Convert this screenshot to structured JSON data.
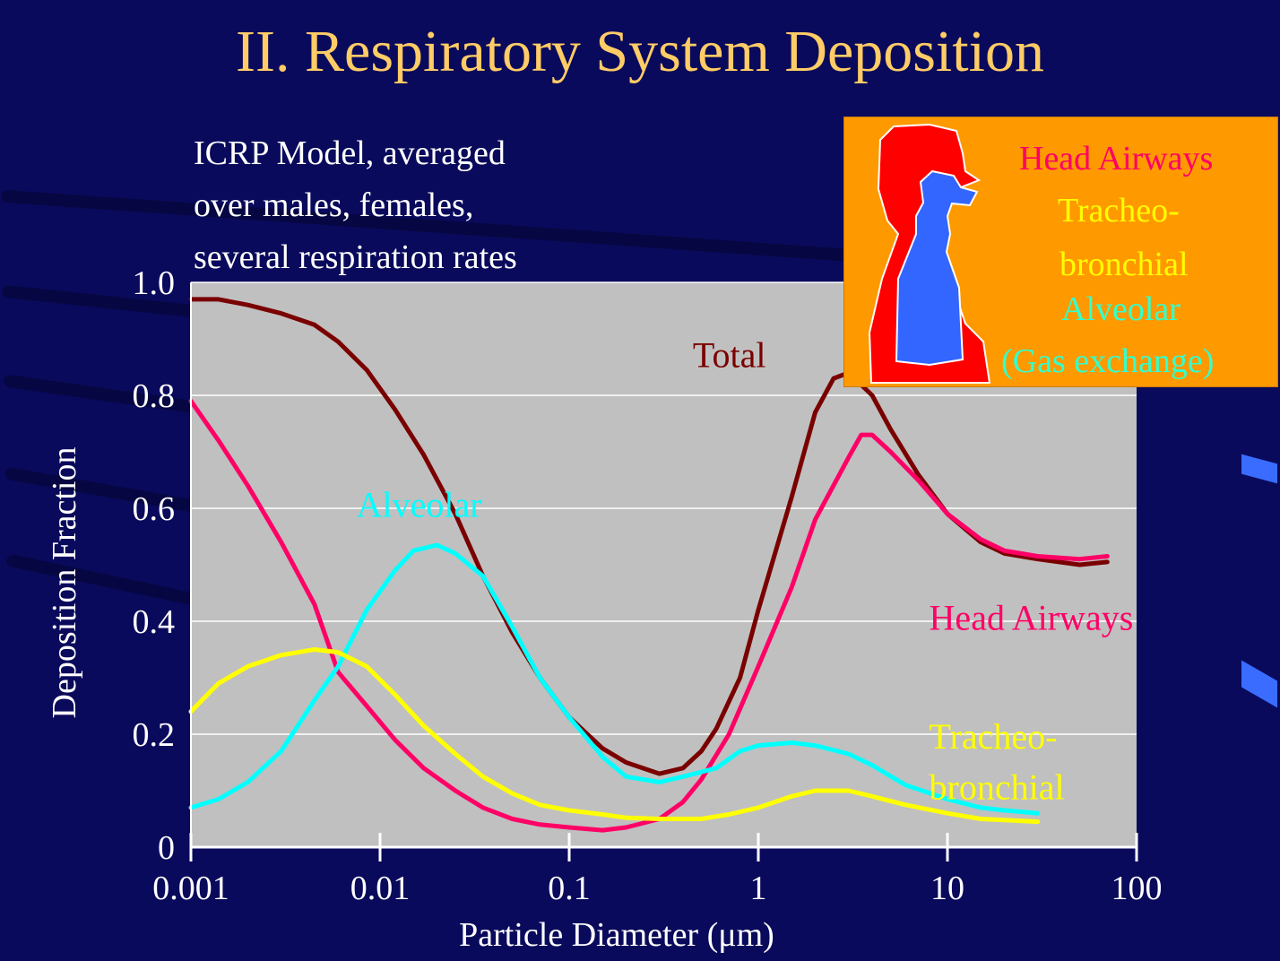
{
  "slide": {
    "title": "II.  Respiratory System Deposition",
    "subtitle_lines": [
      "ICRP Model, averaged",
      "over males, females,",
      "several respiration rates"
    ]
  },
  "legend": {
    "head": "Head Airways",
    "tracheo_1": "Tracheo-",
    "tracheo_2": "bronchial",
    "alveolar": "Alveolar",
    "gas": "(Gas exchange)",
    "colors": {
      "head": "#ff0066",
      "tracheo": "#ffff00",
      "alveolar": "#33ffcc",
      "box": "#ff9900",
      "body_red": "#ff0000",
      "body_blue": "#3366ff"
    }
  },
  "chart_data": {
    "type": "line",
    "x_scale": "log",
    "xlabel": "Particle Diameter (μm)",
    "ylabel": "Deposition Fraction",
    "xlim": [
      0.001,
      100
    ],
    "ylim": [
      0,
      1.0
    ],
    "x_ticks": [
      "0.001",
      "0.01",
      "0.1",
      "1",
      "10",
      "100"
    ],
    "y_ticks": [
      "0",
      "0.2",
      "0.4",
      "0.6",
      "0.8",
      "1.0"
    ],
    "plot_background": "#c0c0c0",
    "grid": "horizontal",
    "series": [
      {
        "name": "Total",
        "color": "#7a0000",
        "points": [
          [
            0.001,
            0.97
          ],
          [
            0.0014,
            0.97
          ],
          [
            0.002,
            0.96
          ],
          [
            0.003,
            0.945
          ],
          [
            0.0045,
            0.925
          ],
          [
            0.006,
            0.895
          ],
          [
            0.0085,
            0.845
          ],
          [
            0.012,
            0.775
          ],
          [
            0.017,
            0.695
          ],
          [
            0.025,
            0.59
          ],
          [
            0.035,
            0.48
          ],
          [
            0.05,
            0.38
          ],
          [
            0.07,
            0.3
          ],
          [
            0.1,
            0.23
          ],
          [
            0.15,
            0.175
          ],
          [
            0.2,
            0.15
          ],
          [
            0.3,
            0.13
          ],
          [
            0.4,
            0.14
          ],
          [
            0.5,
            0.17
          ],
          [
            0.6,
            0.21
          ],
          [
            0.8,
            0.3
          ],
          [
            1.0,
            0.42
          ],
          [
            1.5,
            0.62
          ],
          [
            2.0,
            0.77
          ],
          [
            2.5,
            0.83
          ],
          [
            3.0,
            0.84
          ],
          [
            4.0,
            0.8
          ],
          [
            5.0,
            0.74
          ],
          [
            7.0,
            0.66
          ],
          [
            10,
            0.59
          ],
          [
            15,
            0.54
          ],
          [
            20,
            0.52
          ],
          [
            30,
            0.51
          ],
          [
            50,
            0.5
          ],
          [
            70,
            0.505
          ]
        ]
      },
      {
        "name": "Head Airways",
        "color": "#ff0066",
        "points": [
          [
            0.001,
            0.79
          ],
          [
            0.0014,
            0.72
          ],
          [
            0.002,
            0.64
          ],
          [
            0.003,
            0.54
          ],
          [
            0.0045,
            0.43
          ],
          [
            0.006,
            0.31
          ],
          [
            0.0085,
            0.25
          ],
          [
            0.012,
            0.19
          ],
          [
            0.017,
            0.14
          ],
          [
            0.025,
            0.1
          ],
          [
            0.035,
            0.07
          ],
          [
            0.05,
            0.05
          ],
          [
            0.07,
            0.04
          ],
          [
            0.1,
            0.035
          ],
          [
            0.15,
            0.03
          ],
          [
            0.2,
            0.035
          ],
          [
            0.3,
            0.05
          ],
          [
            0.4,
            0.08
          ],
          [
            0.5,
            0.12
          ],
          [
            0.7,
            0.2
          ],
          [
            1.0,
            0.32
          ],
          [
            1.5,
            0.46
          ],
          [
            2.0,
            0.58
          ],
          [
            3.0,
            0.69
          ],
          [
            3.5,
            0.73
          ],
          [
            4.0,
            0.73
          ],
          [
            5.0,
            0.7
          ],
          [
            7.0,
            0.65
          ],
          [
            10,
            0.59
          ],
          [
            15,
            0.545
          ],
          [
            20,
            0.525
          ],
          [
            30,
            0.515
          ],
          [
            50,
            0.51
          ],
          [
            70,
            0.515
          ]
        ]
      },
      {
        "name": "Alveolar",
        "color": "#00ffff",
        "points": [
          [
            0.001,
            0.07
          ],
          [
            0.0014,
            0.085
          ],
          [
            0.002,
            0.115
          ],
          [
            0.003,
            0.17
          ],
          [
            0.0045,
            0.26
          ],
          [
            0.006,
            0.32
          ],
          [
            0.0085,
            0.42
          ],
          [
            0.012,
            0.49
          ],
          [
            0.015,
            0.525
          ],
          [
            0.02,
            0.535
          ],
          [
            0.025,
            0.52
          ],
          [
            0.035,
            0.48
          ],
          [
            0.05,
            0.39
          ],
          [
            0.07,
            0.3
          ],
          [
            0.1,
            0.23
          ],
          [
            0.15,
            0.16
          ],
          [
            0.2,
            0.125
          ],
          [
            0.3,
            0.115
          ],
          [
            0.4,
            0.125
          ],
          [
            0.6,
            0.14
          ],
          [
            0.8,
            0.17
          ],
          [
            1.0,
            0.18
          ],
          [
            1.5,
            0.185
          ],
          [
            2.0,
            0.18
          ],
          [
            3.0,
            0.165
          ],
          [
            4.0,
            0.145
          ],
          [
            6.0,
            0.11
          ],
          [
            10,
            0.085
          ],
          [
            15,
            0.07
          ],
          [
            20,
            0.065
          ],
          [
            30,
            0.06
          ]
        ]
      },
      {
        "name": "Tracheo-bronchial",
        "color": "#ffff00",
        "points": [
          [
            0.001,
            0.24
          ],
          [
            0.0014,
            0.29
          ],
          [
            0.002,
            0.32
          ],
          [
            0.003,
            0.34
          ],
          [
            0.0045,
            0.35
          ],
          [
            0.006,
            0.345
          ],
          [
            0.0085,
            0.32
          ],
          [
            0.012,
            0.27
          ],
          [
            0.017,
            0.215
          ],
          [
            0.025,
            0.165
          ],
          [
            0.035,
            0.125
          ],
          [
            0.05,
            0.095
          ],
          [
            0.07,
            0.075
          ],
          [
            0.1,
            0.065
          ],
          [
            0.15,
            0.058
          ],
          [
            0.2,
            0.052
          ],
          [
            0.3,
            0.05
          ],
          [
            0.5,
            0.05
          ],
          [
            0.7,
            0.058
          ],
          [
            1.0,
            0.07
          ],
          [
            1.5,
            0.09
          ],
          [
            2.0,
            0.1
          ],
          [
            3.0,
            0.1
          ],
          [
            4.0,
            0.09
          ],
          [
            6.0,
            0.075
          ],
          [
            10,
            0.06
          ],
          [
            15,
            0.05
          ],
          [
            20,
            0.048
          ],
          [
            30,
            0.045
          ]
        ]
      }
    ],
    "annotations": [
      {
        "text": "Total",
        "x": 0.45,
        "y": 0.85,
        "color": "#7a0000"
      },
      {
        "text": "Alveolar",
        "x": 0.0075,
        "y": 0.585,
        "color": "#00ffff"
      },
      {
        "text": "Head Airways",
        "x": 8,
        "y": 0.385,
        "color": "#ff0066"
      },
      {
        "text": "Tracheo-",
        "x": 8,
        "y": 0.175,
        "color": "#ffff00"
      },
      {
        "text": "bronchial",
        "x": 8,
        "y": 0.085,
        "color": "#ffff00"
      }
    ]
  }
}
